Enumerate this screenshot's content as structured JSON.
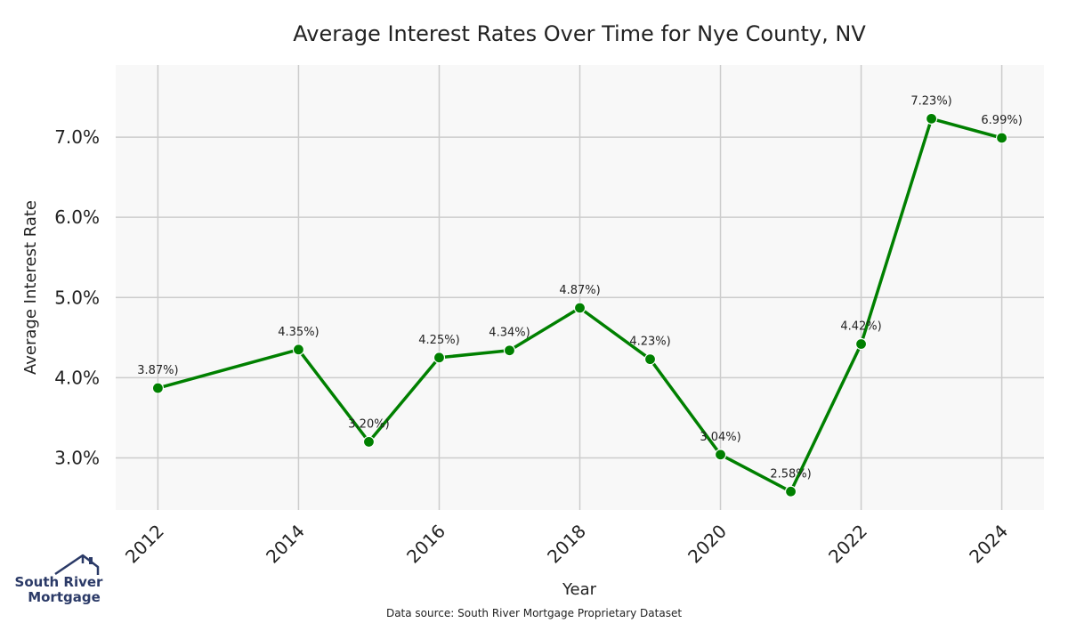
{
  "chart_data": {
    "type": "line",
    "title": "Average Interest Rates Over Time for Nye County, NV",
    "xlabel": "Year",
    "ylabel": "Average Interest Rate",
    "x": [
      2012,
      2014,
      2015,
      2016,
      2017,
      2018,
      2019,
      2020,
      2021,
      2022,
      2023,
      2024
    ],
    "series": [
      {
        "values": [
          3.87,
          4.35,
          3.2,
          4.25,
          4.34,
          4.87,
          4.23,
          3.04,
          2.58,
          4.42,
          7.23,
          6.99
        ],
        "color": "#008000"
      }
    ],
    "data_labels": [
      "3.87%)",
      "4.35%)",
      "3.20%)",
      "4.25%)",
      "4.34%)",
      "4.87%)",
      "4.23%)",
      "3.04%)",
      "2.58%)",
      "4.42%)",
      "7.23%)",
      "6.99%)"
    ],
    "x_ticks": [
      "2012",
      "2014",
      "2016",
      "2018",
      "2020",
      "2022",
      "2024"
    ],
    "y_ticks": [
      "3.0%",
      "4.0%",
      "5.0%",
      "6.0%",
      "7.0%"
    ],
    "x_tick_values": [
      2012,
      2014,
      2016,
      2018,
      2020,
      2022,
      2024
    ],
    "y_tick_values": [
      3,
      4,
      5,
      6,
      7
    ],
    "xlim": [
      2011.4,
      2024.6
    ],
    "ylim": [
      2.35,
      7.9
    ],
    "grid": true,
    "background": "#f8f8f8",
    "grid_color": "#cccccc"
  },
  "source_note": "Data source: South River Mortgage Proprietary Dataset",
  "logo": {
    "line1": "South River",
    "line2": "Mortgage",
    "icon": "house-roof-icon",
    "color": "#2b3a67"
  }
}
